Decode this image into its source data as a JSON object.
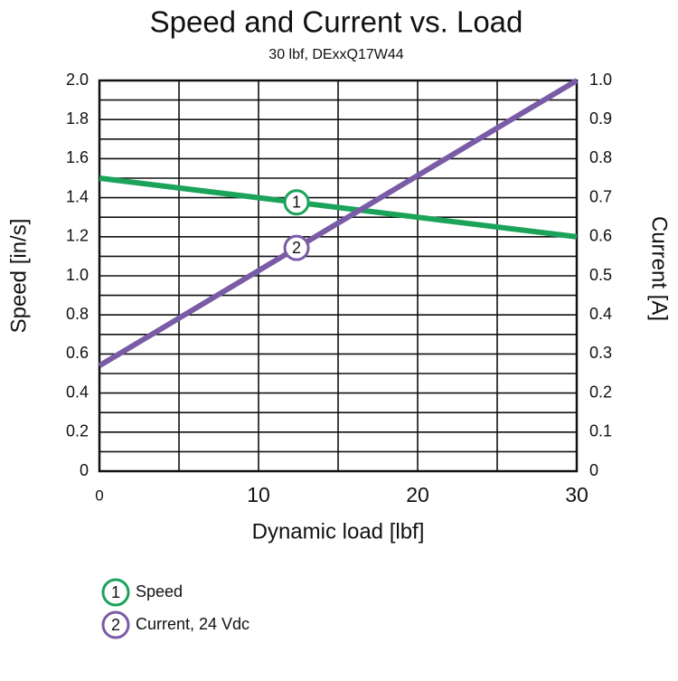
{
  "chart_data": {
    "type": "line",
    "title": "Speed and Current vs. Load",
    "subtitle": "30 lbf, DExxQ17W44",
    "x_label": "Dynamic load [lbf]",
    "y_label": "Speed [in/s]",
    "y2_label": "Current [A]",
    "x": [
      0,
      30
    ],
    "xlim": [
      0,
      30
    ],
    "xticks": [
      0,
      10,
      20,
      30
    ],
    "minor_xticks": [
      5,
      15,
      25
    ],
    "ylim": [
      0,
      2
    ],
    "yticks": [
      0,
      0.2,
      0.4,
      0.6,
      0.8,
      {
        "value": 1,
        "label": "1.0"
      },
      1.2,
      1.4,
      1.6,
      1.8,
      {
        "value": 2,
        "label": "2.0"
      }
    ],
    "minor_yticks": [
      0.1,
      0.3,
      0.5,
      0.7,
      0.9,
      1.1,
      1.3,
      1.5,
      1.7,
      1.9
    ],
    "y2lim": [
      0,
      1
    ],
    "y2ticks": [
      0,
      0.1,
      0.2,
      0.3,
      0.4,
      0.5,
      0.6,
      0.7,
      0.8,
      0.9,
      {
        "value": 1,
        "label": "1.0"
      }
    ],
    "grid": true,
    "series": [
      {
        "name": "Speed",
        "marker_label": "1",
        "color": "#1ba35a",
        "values": [
          1.5,
          1.2
        ]
      },
      {
        "name": "Current, 24 Vdc",
        "marker_label": "2",
        "color": "#7a5ba6",
        "axis": "y2",
        "values": [
          0.27,
          1
        ]
      }
    ]
  }
}
